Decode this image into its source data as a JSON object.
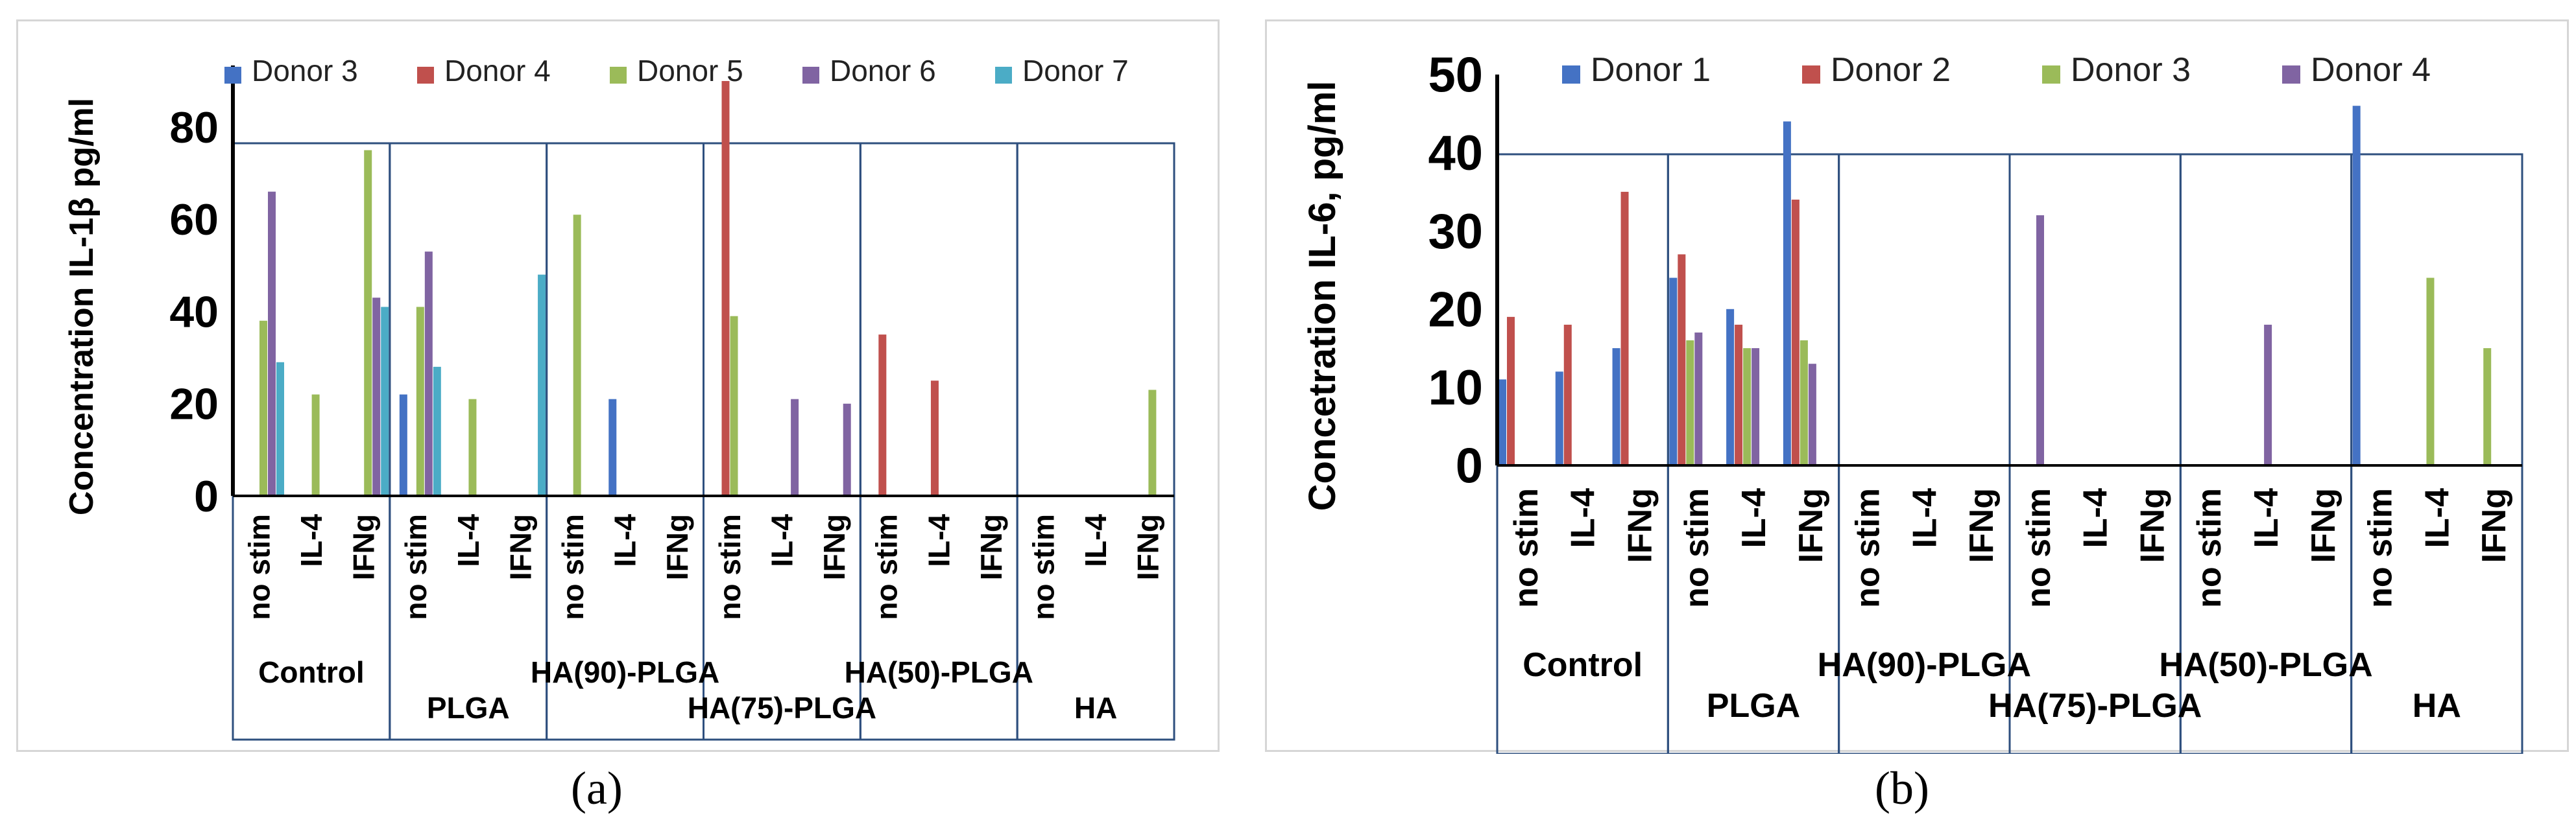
{
  "captions": [
    "(a)",
    "(b)"
  ],
  "chart_data": [
    {
      "type": "bar",
      "ylabel": "Concentration IL-1β pg/ml",
      "ylim": [
        0,
        90
      ],
      "yticks": [
        0,
        20,
        40,
        60,
        80
      ],
      "groups": [
        "Control",
        "PLGA",
        "HA(90)-PLGA",
        "HA(75)-PLGA",
        "HA(50)-PLGA",
        "HA"
      ],
      "conditions": [
        "no stim",
        "IL-4",
        "IFNg"
      ],
      "series": [
        {
          "name": "Donor 3",
          "color": "#4472c4",
          "values": [
            0,
            0,
            0,
            22,
            0,
            0,
            0,
            21,
            0,
            0,
            0,
            0,
            0,
            0,
            0,
            0,
            0,
            0
          ]
        },
        {
          "name": "Donor 4",
          "color": "#c0504d",
          "values": [
            0,
            0,
            0,
            0,
            0,
            0,
            0,
            0,
            0,
            90,
            0,
            0,
            35,
            25,
            0,
            0,
            0,
            0
          ]
        },
        {
          "name": "Donor 5",
          "color": "#9bbb59",
          "values": [
            38,
            22,
            75,
            41,
            21,
            0,
            61,
            0,
            0,
            39,
            0,
            0,
            0,
            0,
            0,
            0,
            0,
            23
          ]
        },
        {
          "name": "Donor 6",
          "color": "#8064a2",
          "values": [
            66,
            0,
            43,
            53,
            0,
            0,
            0,
            0,
            0,
            0,
            21,
            20,
            0,
            0,
            0,
            0,
            0,
            0
          ]
        },
        {
          "name": "Donor 7",
          "color": "#4bacc6",
          "values": [
            29,
            0,
            41,
            28,
            0,
            48,
            0,
            0,
            0,
            0,
            0,
            0,
            0,
            0,
            0,
            0,
            0,
            0
          ]
        }
      ]
    },
    {
      "type": "bar",
      "ylabel": "Concetration IL-6, pg/ml",
      "ylim": [
        0,
        50
      ],
      "yticks": [
        0,
        10,
        20,
        30,
        40,
        50
      ],
      "groups": [
        "Control",
        "PLGA",
        "HA(90)-PLGA",
        "HA(75)-PLGA",
        "HA(50)-PLGA",
        "HA"
      ],
      "conditions": [
        "no stim",
        "IL-4",
        "IFNg"
      ],
      "series": [
        {
          "name": "Donor 1",
          "color": "#4472c4",
          "values": [
            11,
            12,
            15,
            24,
            20,
            44,
            0,
            0,
            0,
            0,
            0,
            0,
            0,
            0,
            0,
            46,
            0,
            0
          ]
        },
        {
          "name": "Donor 2",
          "color": "#c0504d",
          "values": [
            19,
            18,
            35,
            27,
            18,
            34,
            0,
            0,
            0,
            0,
            0,
            0,
            0,
            0,
            0,
            0,
            0,
            0
          ]
        },
        {
          "name": "Donor 3",
          "color": "#9bbb59",
          "values": [
            0,
            0,
            0,
            16,
            15,
            16,
            0,
            0,
            0,
            0,
            0,
            0,
            0,
            0,
            0,
            0,
            24,
            15
          ]
        },
        {
          "name": "Donor 4",
          "color": "#8064a2",
          "values": [
            0,
            0,
            0,
            17,
            15,
            13,
            0,
            0,
            0,
            32,
            0,
            0,
            0,
            18,
            0,
            0,
            0,
            0
          ]
        }
      ]
    }
  ]
}
